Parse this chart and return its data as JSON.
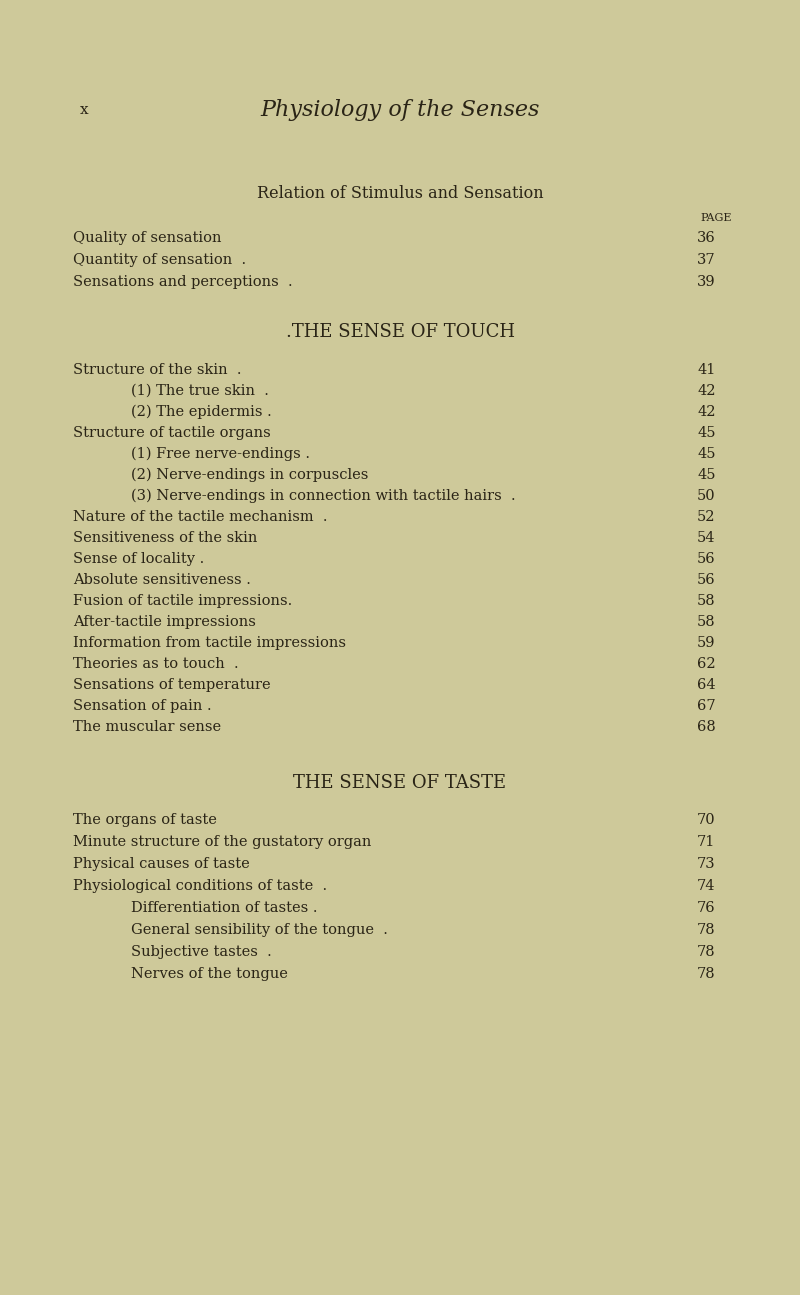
{
  "bg_color": "#cec99a",
  "text_color": "#2a2416",
  "page_width": 8.0,
  "page_height": 12.95,
  "header_italic": "Physiology of the Senses",
  "header_x_label": "x",
  "section1_title": "Relation of Stimulus and Sensation",
  "page_label": "PAGE",
  "section2_title": ".THE SENSE OF TOUCH",
  "section3_title": "THE SENSE OF TASTE",
  "entries_s1": [
    {
      "text": "Quality of sensation",
      "indent": 0,
      "page": "36"
    },
    {
      "text": "Quantity of sensation  .",
      "indent": 0,
      "page": "37"
    },
    {
      "text": "Sensations and perceptions  .",
      "indent": 0,
      "page": "39"
    }
  ],
  "entries_s2": [
    {
      "text": "Structure of the skin  .",
      "indent": 0,
      "page": "41"
    },
    {
      "text": "(1) The true skin  .",
      "indent": 1,
      "page": "42"
    },
    {
      "text": "(2) The epidermis .",
      "indent": 1,
      "page": "42"
    },
    {
      "text": "Structure of tactile organs",
      "indent": 0,
      "page": "45"
    },
    {
      "text": "(1) Free nerve-endings .",
      "indent": 1,
      "page": "45"
    },
    {
      "text": "(2) Nerve-endings in corpuscles",
      "indent": 1,
      "page": "45"
    },
    {
      "text": "(3) Nerve-endings in connection with tactile hairs  .",
      "indent": 1,
      "page": "50"
    },
    {
      "text": "Nature of the tactile mechanism  .",
      "indent": 0,
      "page": "52"
    },
    {
      "text": "Sensitiveness of the skin",
      "indent": 0,
      "page": "54"
    },
    {
      "text": "Sense of locality .",
      "indent": 0,
      "page": "56"
    },
    {
      "text": "Absolute sensitiveness .",
      "indent": 0,
      "page": "56"
    },
    {
      "text": "Fusion of tactile impressions.",
      "indent": 0,
      "page": "58"
    },
    {
      "text": "After-tactile impressions",
      "indent": 0,
      "page": "58"
    },
    {
      "text": "Information from tactile impressions",
      "indent": 0,
      "page": "59"
    },
    {
      "text": "Theories as to touch  .",
      "indent": 0,
      "page": "62"
    },
    {
      "text": "Sensations of temperature",
      "indent": 0,
      "page": "64"
    },
    {
      "text": "Sensation of pain .",
      "indent": 0,
      "page": "67"
    },
    {
      "text": "The muscular sense",
      "indent": 0,
      "page": "68"
    }
  ],
  "entries_s3": [
    {
      "text": "The organs of taste",
      "indent": 0,
      "page": "70"
    },
    {
      "text": "Minute structure of the gustatory organ",
      "indent": 0,
      "page": "71"
    },
    {
      "text": "Physical causes of taste",
      "indent": 0,
      "page": "73"
    },
    {
      "text": "Physiological conditions of taste  .",
      "indent": 0,
      "page": "74"
    },
    {
      "text": "Differentiation of tastes .",
      "indent": 1,
      "page": "76"
    },
    {
      "text": "General sensibility of the tongue  .",
      "indent": 1,
      "page": "78"
    },
    {
      "text": "Subjective tastes  .",
      "indent": 1,
      "page": "78"
    },
    {
      "text": "Nerves of the tongue",
      "indent": 1,
      "page": "78"
    }
  ]
}
